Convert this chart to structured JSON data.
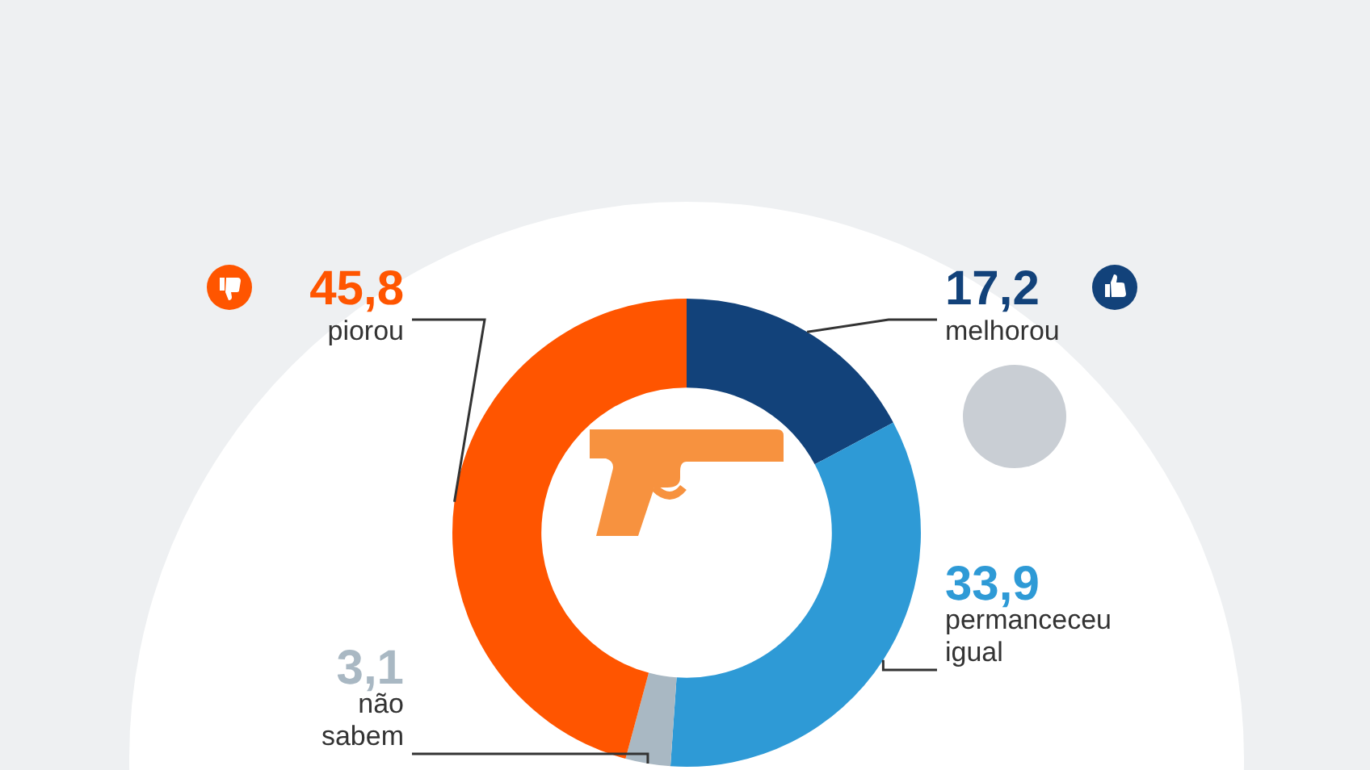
{
  "chart_data": {
    "type": "donut",
    "categories": [
      "melhorou",
      "permanceceu igual",
      "não sabem",
      "piorou"
    ],
    "values": [
      17.2,
      33.9,
      3.1,
      45.8
    ],
    "colors": [
      "#12427a",
      "#2e9ad6",
      "#a9b8c3",
      "#ff5500"
    ],
    "value_labels": [
      "17,2",
      "33,9",
      "3,1",
      "45,8"
    ],
    "legend": false
  }
}
